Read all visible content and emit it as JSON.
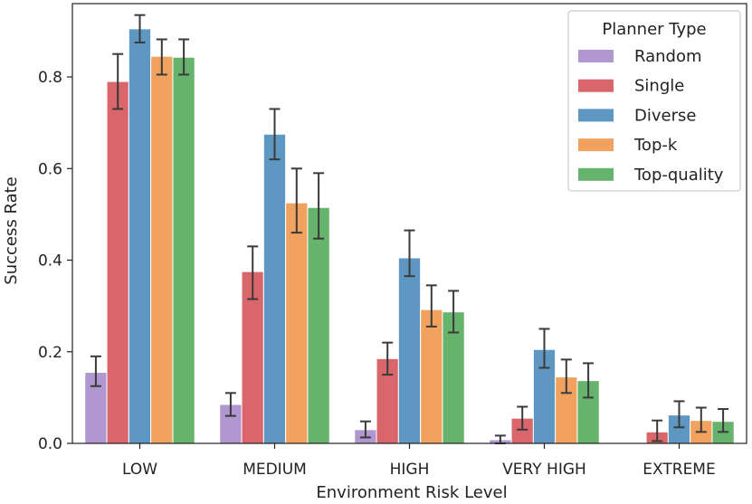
{
  "chart_data": {
    "type": "bar",
    "title": "",
    "xlabel": "Environment Risk Level",
    "ylabel": "Success Rate",
    "ylim": [
      0,
      0.96
    ],
    "yticks": [
      "0.0",
      "0.2",
      "0.4",
      "0.6",
      "0.8"
    ],
    "ytick_values": [
      0,
      0.2,
      0.4,
      0.6,
      0.8
    ],
    "categories": [
      "LOW",
      "MEDIUM",
      "HIGH",
      "VERY HIGH",
      "EXTREME"
    ],
    "legend": {
      "title": "Planner Type",
      "position": "top-right"
    },
    "series": [
      {
        "name": "Random",
        "color": "#b197cf",
        "values": [
          0.155,
          0.085,
          0.03,
          0.008,
          0.0
        ],
        "err_low": [
          0.125,
          0.06,
          0.013,
          0.0,
          0.0
        ],
        "err_high": [
          0.19,
          0.11,
          0.048,
          0.017,
          0.0
        ]
      },
      {
        "name": "Single",
        "color": "#d8666a",
        "values": [
          0.79,
          0.375,
          0.185,
          0.055,
          0.025
        ],
        "err_low": [
          0.73,
          0.315,
          0.15,
          0.03,
          0.005
        ],
        "err_high": [
          0.85,
          0.43,
          0.22,
          0.08,
          0.05
        ]
      },
      {
        "name": "Diverse",
        "color": "#5e98c2",
        "values": [
          0.905,
          0.675,
          0.405,
          0.205,
          0.062
        ],
        "err_low": [
          0.875,
          0.62,
          0.365,
          0.165,
          0.035
        ],
        "err_high": [
          0.935,
          0.73,
          0.465,
          0.25,
          0.092
        ]
      },
      {
        "name": "Top-k",
        "color": "#f0a25e",
        "values": [
          0.845,
          0.525,
          0.292,
          0.145,
          0.05
        ],
        "err_low": [
          0.805,
          0.46,
          0.255,
          0.11,
          0.025
        ],
        "err_high": [
          0.882,
          0.6,
          0.345,
          0.183,
          0.078
        ]
      },
      {
        "name": "Top-quality",
        "color": "#66b36d",
        "values": [
          0.843,
          0.515,
          0.287,
          0.137,
          0.048
        ],
        "err_low": [
          0.805,
          0.447,
          0.242,
          0.1,
          0.025
        ],
        "err_high": [
          0.882,
          0.59,
          0.333,
          0.175,
          0.075
        ]
      }
    ]
  }
}
